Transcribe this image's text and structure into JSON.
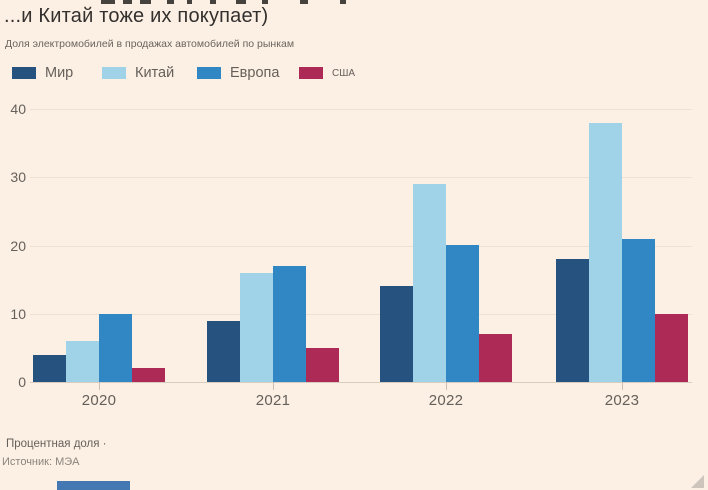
{
  "page": {
    "title": "...и Китай тоже их покупает)",
    "subtitle": "Доля электромобилей в продажах автомобилей по рынкам",
    "footnote": "Процентная доля ·",
    "source": "Источник: МЭА",
    "background_color": "#fcf0e4"
  },
  "legend": {
    "items": [
      {
        "label": "Мир",
        "color": "#26527f"
      },
      {
        "label": "Китай",
        "color": "#a0d3e8"
      },
      {
        "label": "Европа",
        "color": "#3187c4"
      },
      {
        "label": "США",
        "color": "#ad2a57"
      }
    ]
  },
  "chart_data": {
    "type": "bar",
    "title": "...и Китай тоже их покупает)",
    "subtitle": "Доля электромобилей в продажах автомобилей по рынкам",
    "categories": [
      "2020",
      "2021",
      "2022",
      "2023"
    ],
    "series": [
      {
        "name": "Мир",
        "color": "#26527f",
        "values": [
          4,
          9,
          14,
          18
        ]
      },
      {
        "name": "Китай",
        "color": "#a0d3e8",
        "values": [
          6,
          16,
          29,
          38
        ]
      },
      {
        "name": "Европа",
        "color": "#3187c4",
        "values": [
          10,
          17,
          20,
          21
        ]
      },
      {
        "name": "США",
        "color": "#ad2a57",
        "values": [
          2,
          5,
          7,
          10
        ]
      }
    ],
    "xlabel": "",
    "ylabel": "",
    "ylim": [
      0,
      40
    ],
    "yticks": [
      0,
      10,
      20,
      30,
      40
    ],
    "grid": true,
    "legend_position": "top",
    "note": "Процентная доля ·",
    "source": "Источник: МЭА"
  }
}
